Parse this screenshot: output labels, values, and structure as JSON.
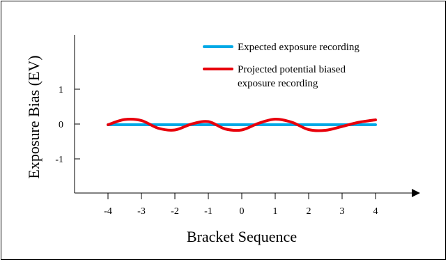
{
  "chart_data": {
    "type": "line",
    "title": "",
    "xlabel": "Bracket Sequence",
    "ylabel": "Exposure Bias (EV)",
    "x_ticks": [
      "-4",
      "-3",
      "-2",
      "-1",
      "0",
      "1",
      "2",
      "3",
      "4"
    ],
    "y_ticks": [
      "1",
      "0",
      "-1"
    ],
    "xlim": [
      -5,
      5
    ],
    "ylim": [
      -2,
      2.5
    ],
    "grid": false,
    "legend_position": "top-right",
    "series": [
      {
        "name": "Expected exposure recording",
        "color": "#00a9e6",
        "x": [
          -4,
          4
        ],
        "y": [
          -0.02,
          -0.02
        ]
      },
      {
        "name": "Projected potential biased exposure recording",
        "color": "#e8000b",
        "x": [
          -4,
          -3.5,
          -3,
          -2.5,
          -2,
          -1.5,
          -1,
          -0.5,
          0,
          0.5,
          1,
          1.5,
          2,
          2.5,
          3,
          3.5,
          4
        ],
        "y": [
          -0.02,
          0.13,
          0.1,
          -0.12,
          -0.17,
          0.0,
          0.07,
          -0.14,
          -0.17,
          0.02,
          0.14,
          0.05,
          -0.16,
          -0.18,
          -0.07,
          0.05,
          0.12
        ]
      }
    ]
  }
}
